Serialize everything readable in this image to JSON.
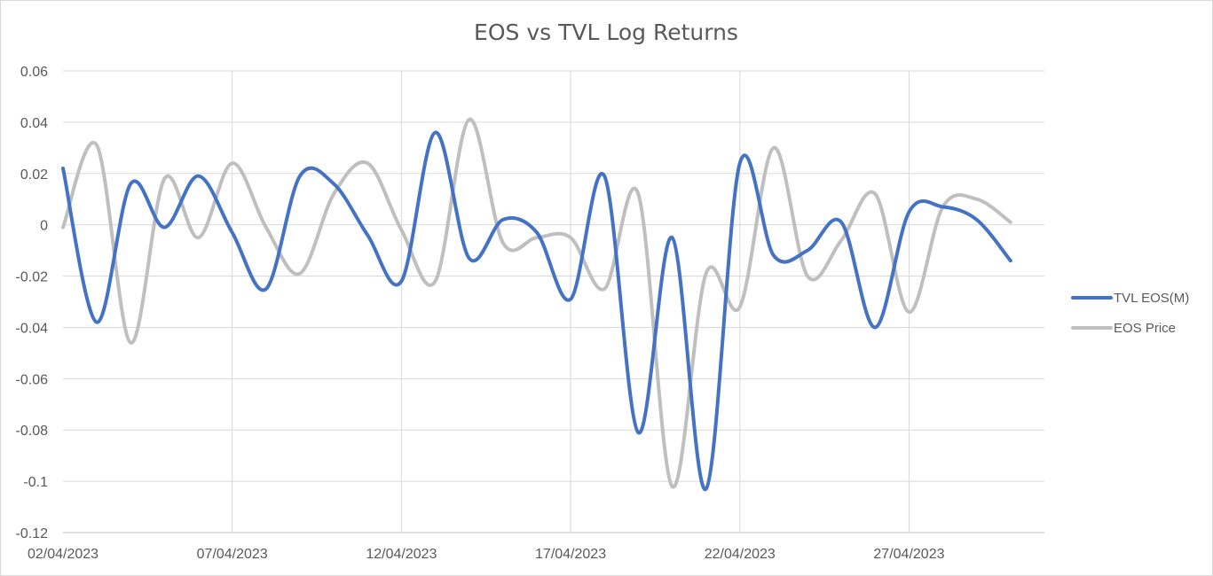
{
  "chart_data": {
    "type": "line",
    "title": "EOS vs TVL Log Returns",
    "xlabel": "",
    "ylabel": "",
    "ylim": [
      -0.12,
      0.06
    ],
    "y_ticks": [
      "0.06",
      "0.04",
      "0.02",
      "0",
      "-0.02",
      "-0.04",
      "-0.06",
      "-0.08",
      "-0.1",
      "-0.12"
    ],
    "y_tick_values": [
      0.06,
      0.04,
      0.02,
      0,
      -0.02,
      -0.04,
      -0.06,
      -0.08,
      -0.1,
      -0.12
    ],
    "x_tick_labels": [
      "02/04/2023",
      "07/04/2023",
      "12/04/2023",
      "17/04/2023",
      "22/04/2023",
      "27/04/2023"
    ],
    "x_tick_dates": [
      "2023-04-02",
      "2023-04-07",
      "2023-04-12",
      "2023-04-17",
      "2023-04-22",
      "2023-04-27"
    ],
    "x_range": [
      "2023-04-02",
      "2023-05-01"
    ],
    "x": [
      "2023-04-02",
      "2023-04-03",
      "2023-04-04",
      "2023-04-05",
      "2023-04-06",
      "2023-04-07",
      "2023-04-08",
      "2023-04-09",
      "2023-04-10",
      "2023-04-11",
      "2023-04-12",
      "2023-04-13",
      "2023-04-14",
      "2023-04-15",
      "2023-04-16",
      "2023-04-17",
      "2023-04-18",
      "2023-04-19",
      "2023-04-20",
      "2023-04-21",
      "2023-04-22",
      "2023-04-23",
      "2023-04-24",
      "2023-04-25",
      "2023-04-26",
      "2023-04-27",
      "2023-04-28",
      "2023-04-29",
      "2023-04-30"
    ],
    "series": [
      {
        "name": "TVL EOS(M)",
        "color": "#4472c4",
        "values": [
          0.022,
          -0.038,
          0.016,
          -0.001,
          0.019,
          -0.003,
          -0.025,
          0.019,
          0.016,
          -0.004,
          -0.022,
          0.036,
          -0.013,
          0.002,
          -0.003,
          -0.029,
          0.019,
          -0.081,
          -0.005,
          -0.103,
          0.024,
          -0.012,
          -0.01,
          0.001,
          -0.04,
          0.005,
          0.007,
          0.002,
          -0.014
        ]
      },
      {
        "name": "EOS Price",
        "color": "#bfbfbf",
        "values": [
          -0.001,
          0.031,
          -0.046,
          0.018,
          -0.005,
          0.024,
          -0.001,
          -0.019,
          0.012,
          0.024,
          -0.002,
          -0.022,
          0.041,
          -0.007,
          -0.005,
          -0.005,
          -0.025,
          0.012,
          -0.102,
          -0.019,
          -0.032,
          0.03,
          -0.02,
          -0.006,
          0.012,
          -0.034,
          0.007,
          0.01,
          0.001
        ]
      }
    ],
    "grid": true,
    "legend_position": "right"
  }
}
